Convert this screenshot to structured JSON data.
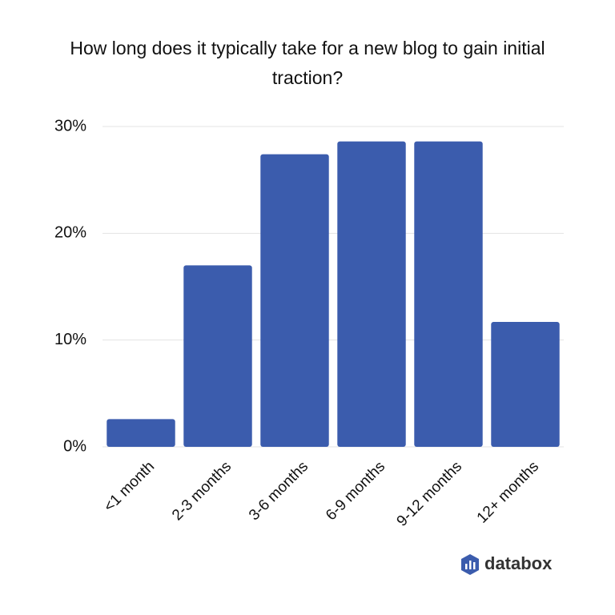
{
  "chart_data": {
    "type": "bar",
    "title": "How long does it typically take for a new blog to gain initial traction?",
    "categories": [
      "<1 month",
      "2-3 months",
      "3-6 months",
      "6-9 months",
      "9-12 months",
      "12+ months"
    ],
    "values": [
      2.6,
      17,
      27.4,
      28.6,
      28.6,
      11.7
    ],
    "color": "#3b5cad",
    "ylim": [
      0,
      30
    ],
    "yticks": [
      {
        "value": 0,
        "label": "0%"
      },
      {
        "value": 10,
        "label": "10%"
      },
      {
        "value": 20,
        "label": "20%"
      },
      {
        "value": 30,
        "label": "30%"
      }
    ],
    "grid": true
  },
  "brand": "databox"
}
